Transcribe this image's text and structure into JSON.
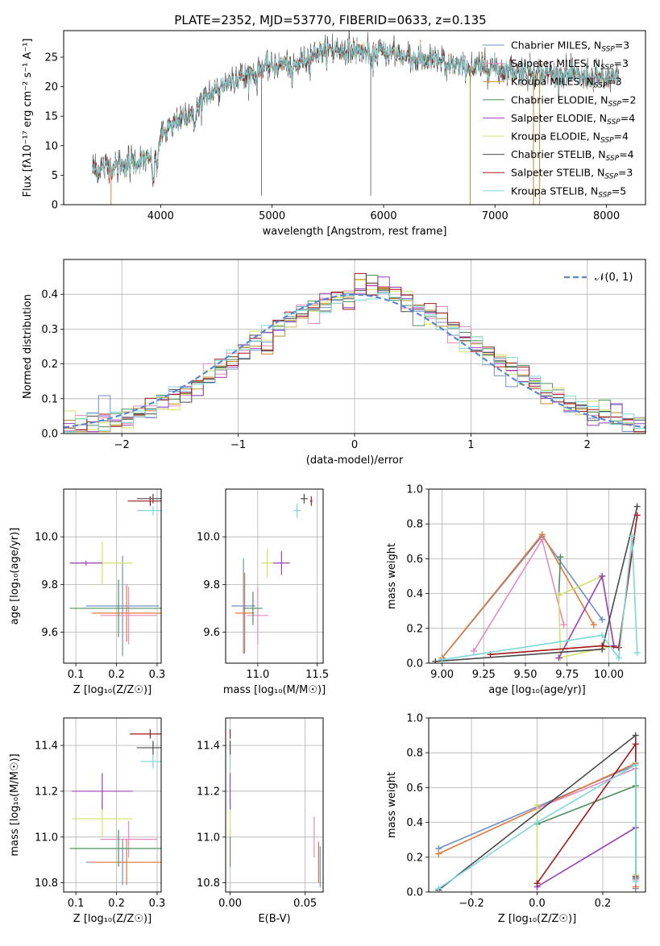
{
  "chart_data": [
    {
      "type": "line",
      "panel": "spectrum",
      "title": "PLATE=2352, MJD=53770, FIBERID=0633, z=0.135",
      "xlabel": "wavelength [Angstrom, rest frame]",
      "ylabel": "Flux [fλ10⁻¹⁷ erg cm⁻² s⁻¹ A⁻¹]",
      "xlim": [
        3130,
        8350
      ],
      "ylim": [
        0,
        29.5
      ],
      "xticks": [
        4000,
        5000,
        6000,
        7000,
        8000
      ],
      "yticks": [
        0,
        5,
        10,
        15,
        20,
        25
      ],
      "legend_position": "upper right",
      "legend": [
        {
          "label": "Chabrier MILES, N",
          "sub": "SSP",
          "tail": "=3",
          "color": "#6f8fc7"
        },
        {
          "label": "Salpeter MILES, N",
          "sub": "SSP",
          "tail": "=3",
          "color": "#e58ac0"
        },
        {
          "label": "Kroupa MILES, N",
          "sub": "SSP",
          "tail": "=3",
          "color": "#c08c2a"
        },
        {
          "label": "Chabrier ELODIE, N",
          "sub": "SSP",
          "tail": "=2",
          "color": "#4f8f5f"
        },
        {
          "label": "Salpeter ELODIE, N",
          "sub": "SSP",
          "tail": "=4",
          "color": "#9b3fbf"
        },
        {
          "label": "Kroupa ELODIE, N",
          "sub": "SSP",
          "tail": "=4",
          "color": "#d3e06a"
        },
        {
          "label": "Chabrier STELIB, N",
          "sub": "SSP",
          "tail": "=4",
          "color": "#4a4a4a"
        },
        {
          "label": "Salpeter STELIB, N",
          "sub": "SSP",
          "tail": "=3",
          "color": "#a11919"
        },
        {
          "label": "Kroupa STELIB, N",
          "sub": "SSP",
          "tail": "=5",
          "color": "#7ed8d8"
        }
      ],
      "continuum": [
        [
          3390,
          5.8
        ],
        [
          3500,
          6.2
        ],
        [
          3600,
          6.5
        ],
        [
          3700,
          6.8
        ],
        [
          3800,
          7.3
        ],
        [
          3900,
          7.8
        ],
        [
          3950,
          8.5
        ],
        [
          4000,
          11.5
        ],
        [
          4100,
          13.8
        ],
        [
          4200,
          14.8
        ],
        [
          4300,
          15.8
        ],
        [
          4400,
          18
        ],
        [
          4500,
          19.5
        ],
        [
          4600,
          20.8
        ],
        [
          4700,
          21.6
        ],
        [
          4800,
          22.3
        ],
        [
          4900,
          23
        ],
        [
          5000,
          23.5
        ],
        [
          5100,
          24
        ],
        [
          5200,
          23.5
        ],
        [
          5300,
          25
        ],
        [
          5400,
          25.7
        ],
        [
          5500,
          26.2
        ],
        [
          5600,
          26.3
        ],
        [
          5700,
          26.2
        ],
        [
          5800,
          26
        ],
        [
          5900,
          25.6
        ],
        [
          6000,
          26
        ],
        [
          6100,
          25.6
        ],
        [
          6200,
          25
        ],
        [
          6300,
          24.8
        ],
        [
          6400,
          24.5
        ],
        [
          6500,
          24.2
        ],
        [
          6600,
          23.8
        ],
        [
          6700,
          23.5
        ],
        [
          6800,
          23
        ],
        [
          6900,
          23.5
        ],
        [
          7000,
          23.2
        ],
        [
          7100,
          22.8
        ],
        [
          7200,
          22.6
        ],
        [
          7300,
          22.5
        ],
        [
          7400,
          22.3
        ],
        [
          7500,
          22.2
        ],
        [
          7600,
          22
        ],
        [
          7700,
          21.8
        ],
        [
          7800,
          21.6
        ],
        [
          7900,
          21.5
        ],
        [
          8000,
          21.3
        ],
        [
          8100,
          21.2
        ]
      ],
      "lines": [
        [
          3934,
          -5.5
        ],
        [
          3969,
          -4.5
        ],
        [
          4102,
          -2
        ],
        [
          4300,
          -3
        ],
        [
          4861,
          -2
        ],
        [
          5175,
          -3.5
        ],
        [
          5890,
          -3
        ],
        [
          6563,
          -2
        ]
      ],
      "spikes": [
        [
          4905,
          1.5,
          30
        ],
        [
          5885,
          1.5,
          30
        ],
        [
          3555,
          -1,
          7
        ],
        [
          6777,
          -1,
          22
        ],
        [
          7345,
          -1,
          22
        ],
        [
          7400,
          -1,
          22
        ]
      ]
    },
    {
      "type": "line",
      "panel": "residual-histogram",
      "xlabel": "(data-model)/error",
      "ylabel": "Normed distribution",
      "xlim": [
        -2.5,
        2.5
      ],
      "ylim": [
        0,
        0.5
      ],
      "xticks": [
        -2,
        -1,
        0,
        1,
        2
      ],
      "yticks": [
        0.0,
        0.1,
        0.2,
        0.3,
        0.4
      ],
      "legend": "𝒩(0, 1)",
      "legend_position": "upper right",
      "reference": {
        "mu": 0,
        "sigma": 1,
        "color": "#5b86d6"
      },
      "bin_width": 0.1
    },
    {
      "type": "scatter",
      "panel": "age-vs-Z",
      "xlabel": "Z [log₁₀(Z/Z☉)]",
      "ylabel": "age  [log₁₀(age/yr)]",
      "xlim": [
        0.07,
        0.31
      ],
      "ylim": [
        9.47,
        10.2
      ],
      "xticks": [
        0.1,
        0.2,
        0.3
      ],
      "yticks": [
        9.6,
        9.8,
        10.0
      ],
      "points": [
        {
          "x": 0.215,
          "y": 9.71,
          "ex": 0.09,
          "ey": 0.21,
          "color": "#6f8fc7"
        },
        {
          "x": 0.225,
          "y": 9.68,
          "ex": 0.085,
          "ey": 0.12,
          "color": "#e07a3a"
        },
        {
          "x": 0.23,
          "y": 9.67,
          "ex": 0.07,
          "ey": 0.12,
          "color": "#e58ac0"
        },
        {
          "x": 0.205,
          "y": 9.7,
          "ex": 0.12,
          "ey": 0.12,
          "color": "#4f8f5f"
        },
        {
          "x": 0.165,
          "y": 9.89,
          "ex": 0.075,
          "ey": 0.09,
          "color": "#d3e06a"
        },
        {
          "x": 0.125,
          "y": 9.89,
          "ex": 0.04,
          "ey": 0.01,
          "color": "#9b3fbf"
        },
        {
          "x": 0.29,
          "y": 10.16,
          "ex": 0.04,
          "ey": 0.02,
          "color": "#4a4a4a"
        },
        {
          "x": 0.283,
          "y": 10.15,
          "ex": 0.055,
          "ey": 0.02,
          "color": "#a11919"
        },
        {
          "x": 0.29,
          "y": 10.11,
          "ex": 0.04,
          "ey": 0.02,
          "color": "#7ed8d8"
        }
      ]
    },
    {
      "type": "scatter",
      "panel": "age-vs-mass",
      "xlabel": "mass [log₁₀(M/M☉)]",
      "xlim": [
        10.73,
        11.55
      ],
      "ylim": [
        9.47,
        10.2
      ],
      "xticks": [
        11.0,
        11.5
      ],
      "yticks": [
        9.6,
        9.8,
        10.0
      ],
      "points": [
        {
          "x": 10.88,
          "y": 9.71,
          "ex": 0.1,
          "ey": 0.2,
          "color": "#6f8fc7"
        },
        {
          "x": 10.89,
          "y": 9.68,
          "ex": 0.08,
          "ey": 0.17,
          "color": "#e07a3a"
        },
        {
          "x": 11.0,
          "y": 9.67,
          "ex": 0.09,
          "ey": 0.12,
          "color": "#e58ac0"
        },
        {
          "x": 10.96,
          "y": 9.7,
          "ex": 0.08,
          "ey": 0.07,
          "color": "#4f8f5f"
        },
        {
          "x": 11.08,
          "y": 9.89,
          "ex": 0.05,
          "ey": 0.06,
          "color": "#d3e06a"
        },
        {
          "x": 11.2,
          "y": 9.89,
          "ex": 0.07,
          "ey": 0.05,
          "color": "#9b3fbf"
        },
        {
          "x": 11.39,
          "y": 10.16,
          "ex": 0.03,
          "ey": 0.02,
          "color": "#4a4a4a"
        },
        {
          "x": 11.45,
          "y": 10.15,
          "ex": 0.01,
          "ey": 0.02,
          "color": "#a11919"
        },
        {
          "x": 11.33,
          "y": 10.11,
          "ex": 0.03,
          "ey": 0.03,
          "color": "#7ed8d8"
        }
      ]
    },
    {
      "type": "line",
      "panel": "mass-weight-vs-age",
      "xlabel": "age  [log₁₀(age/yr)]",
      "ylabel": "mass weight",
      "xlim": [
        8.92,
        10.22
      ],
      "ylim": [
        0,
        1.0
      ],
      "xticks": [
        9.0,
        9.25,
        9.5,
        9.75,
        10.0
      ],
      "yticks": [
        0.0,
        0.2,
        0.4,
        0.6,
        0.8,
        1.0
      ],
      "series": [
        {
          "color": "#6f8fc7",
          "points": [
            [
              9.0,
              0.03
            ],
            [
              9.6,
              0.73
            ],
            [
              9.96,
              0.25
            ]
          ]
        },
        {
          "color": "#e07a3a",
          "points": [
            [
              9.0,
              0.03
            ],
            [
              9.6,
              0.74
            ],
            [
              9.91,
              0.22
            ]
          ]
        },
        {
          "color": "#e58ac0",
          "points": [
            [
              9.19,
              0.07
            ],
            [
              9.6,
              0.71
            ],
            [
              9.73,
              0.22
            ]
          ]
        },
        {
          "color": "#4f8f5f",
          "points": [
            [
              9.71,
              0.61
            ],
            [
              9.7,
              0.39
            ]
          ]
        },
        {
          "color": "#d3e06a",
          "points": [
            [
              9.71,
              0.03
            ],
            [
              9.7,
              0.39
            ],
            [
              9.96,
              0.5
            ],
            [
              10.03,
              0.1
            ],
            [
              9.7,
              0.03
            ]
          ]
        },
        {
          "color": "#9b3fbf",
          "points": [
            [
              9.7,
              0.03
            ],
            [
              9.96,
              0.5
            ],
            [
              10.03,
              0.1
            ]
          ]
        },
        {
          "color": "#4a4a4a",
          "points": [
            [
              8.96,
              0.01
            ],
            [
              9.96,
              0.08
            ],
            [
              10.17,
              0.9
            ]
          ]
        },
        {
          "color": "#a11919",
          "points": [
            [
              9.29,
              0.05
            ],
            [
              9.96,
              0.1
            ],
            [
              10.06,
              0.09
            ],
            [
              10.17,
              0.85
            ]
          ]
        },
        {
          "color": "#7ed8d8",
          "points": [
            [
              9.0,
              0.02
            ],
            [
              9.96,
              0.16
            ],
            [
              10.06,
              0.03
            ],
            [
              10.14,
              0.73
            ],
            [
              10.17,
              0.06
            ]
          ]
        }
      ]
    },
    {
      "type": "scatter",
      "panel": "mass-vs-Z",
      "xlabel": "Z [log₁₀(Z/Z☉)]",
      "ylabel": "mass [log₁₀(M/M☉)]",
      "xlim": [
        0.07,
        0.31
      ],
      "ylim": [
        10.76,
        11.52
      ],
      "xticks": [
        0.1,
        0.2,
        0.3
      ],
      "yticks": [
        10.8,
        11.0,
        11.2,
        11.4
      ],
      "points": [
        {
          "x": 0.215,
          "y": 10.89,
          "ex": 0.09,
          "ey": 0.1,
          "color": "#6f8fc7"
        },
        {
          "x": 0.225,
          "y": 10.89,
          "ex": 0.085,
          "ey": 0.1,
          "color": "#e07a3a"
        },
        {
          "x": 0.23,
          "y": 10.99,
          "ex": 0.07,
          "ey": 0.08,
          "color": "#e58ac0"
        },
        {
          "x": 0.205,
          "y": 10.95,
          "ex": 0.12,
          "ey": 0.08,
          "color": "#4f8f5f"
        },
        {
          "x": 0.165,
          "y": 11.08,
          "ex": 0.075,
          "ey": 0.08,
          "color": "#d3e06a"
        },
        {
          "x": 0.165,
          "y": 11.2,
          "ex": 0.075,
          "ey": 0.08,
          "color": "#9b3fbf"
        },
        {
          "x": 0.29,
          "y": 11.39,
          "ex": 0.04,
          "ey": 0.03,
          "color": "#4a4a4a"
        },
        {
          "x": 0.283,
          "y": 11.45,
          "ex": 0.05,
          "ey": 0.02,
          "color": "#a11919"
        },
        {
          "x": 0.29,
          "y": 11.33,
          "ex": 0.03,
          "ey": 0.03,
          "color": "#7ed8d8"
        }
      ]
    },
    {
      "type": "scatter",
      "panel": "mass-vs-EBV",
      "xlabel": "E(B-V)",
      "xlim": [
        -0.003,
        0.062
      ],
      "ylim": [
        10.76,
        11.52
      ],
      "xticks": [
        0.0,
        0.05
      ],
      "yticks": [
        10.8,
        11.0,
        11.2,
        11.4
      ],
      "points": [
        {
          "x": 0.0,
          "y": 10.95,
          "ex": 0,
          "ey": 0.08,
          "color": "#4f8f5f"
        },
        {
          "x": 0.0,
          "y": 11.08,
          "ex": 0,
          "ey": 0.08,
          "color": "#d3e06a"
        },
        {
          "x": 0.0,
          "y": 11.2,
          "ex": 0,
          "ey": 0.08,
          "color": "#9b3fbf"
        },
        {
          "x": 0.0,
          "y": 11.39,
          "ex": 0,
          "ey": 0.03,
          "color": "#4a4a4a"
        },
        {
          "x": 0.0,
          "y": 11.45,
          "ex": 0,
          "ey": 0.02,
          "color": "#a11919"
        },
        {
          "x": 0.0,
          "y": 11.33,
          "ex": 0,
          "ey": 0.03,
          "color": "#7ed8d8"
        },
        {
          "x": 0.056,
          "y": 11.0,
          "ex": 0,
          "ey": 0.09,
          "color": "#e58ac0"
        },
        {
          "x": 0.059,
          "y": 10.89,
          "ex": 0,
          "ey": 0.09,
          "color": "#e07a3a"
        },
        {
          "x": 0.06,
          "y": 10.87,
          "ex": 0,
          "ey": 0.09,
          "color": "#6f8fc7"
        }
      ]
    },
    {
      "type": "line",
      "panel": "mass-weight-vs-Z",
      "xlabel": "Z [log₁₀(Z/Z☉)]",
      "ylabel": "mass weight",
      "xlim": [
        -0.33,
        0.33
      ],
      "ylim": [
        0,
        1.0
      ],
      "xticks": [
        -0.2,
        0.0,
        0.2
      ],
      "yticks": [
        0.0,
        0.2,
        0.4,
        0.6,
        0.8,
        1.0
      ],
      "series": [
        {
          "color": "#6f8fc7",
          "points": [
            [
              -0.3,
              0.25
            ],
            [
              0.3,
              0.73
            ],
            [
              0.3,
              0.02
            ]
          ]
        },
        {
          "color": "#e07a3a",
          "points": [
            [
              -0.3,
              0.22
            ],
            [
              0.3,
              0.74
            ],
            [
              0.3,
              0.03
            ]
          ]
        },
        {
          "color": "#e58ac0",
          "points": [
            [
              0.0,
              0.48
            ],
            [
              0.3,
              0.71
            ],
            [
              0.3,
              0.07
            ]
          ]
        },
        {
          "color": "#4f8f5f",
          "points": [
            [
              0.0,
              0.39
            ],
            [
              0.3,
              0.61
            ]
          ]
        },
        {
          "color": "#d3e06a",
          "points": [
            [
              0.0,
              0.5
            ],
            [
              0.0,
              0.03
            ],
            [
              0.3,
              0.37
            ],
            [
              0.3,
              0.1
            ]
          ]
        },
        {
          "color": "#9b3fbf",
          "points": [
            [
              0.0,
              0.03
            ],
            [
              0.3,
              0.37
            ]
          ]
        },
        {
          "color": "#4a4a4a",
          "points": [
            [
              -0.3,
              0.01
            ],
            [
              0.3,
              0.9
            ],
            [
              0.3,
              0.08
            ]
          ]
        },
        {
          "color": "#a11919",
          "points": [
            [
              0.0,
              0.05
            ],
            [
              0.3,
              0.85
            ],
            [
              0.3,
              0.09
            ]
          ]
        },
        {
          "color": "#7ed8d8",
          "points": [
            [
              -0.3,
              0.02
            ],
            [
              0.0,
              0.4
            ],
            [
              0.3,
              0.73
            ],
            [
              0.3,
              0.06
            ]
          ]
        }
      ]
    }
  ]
}
